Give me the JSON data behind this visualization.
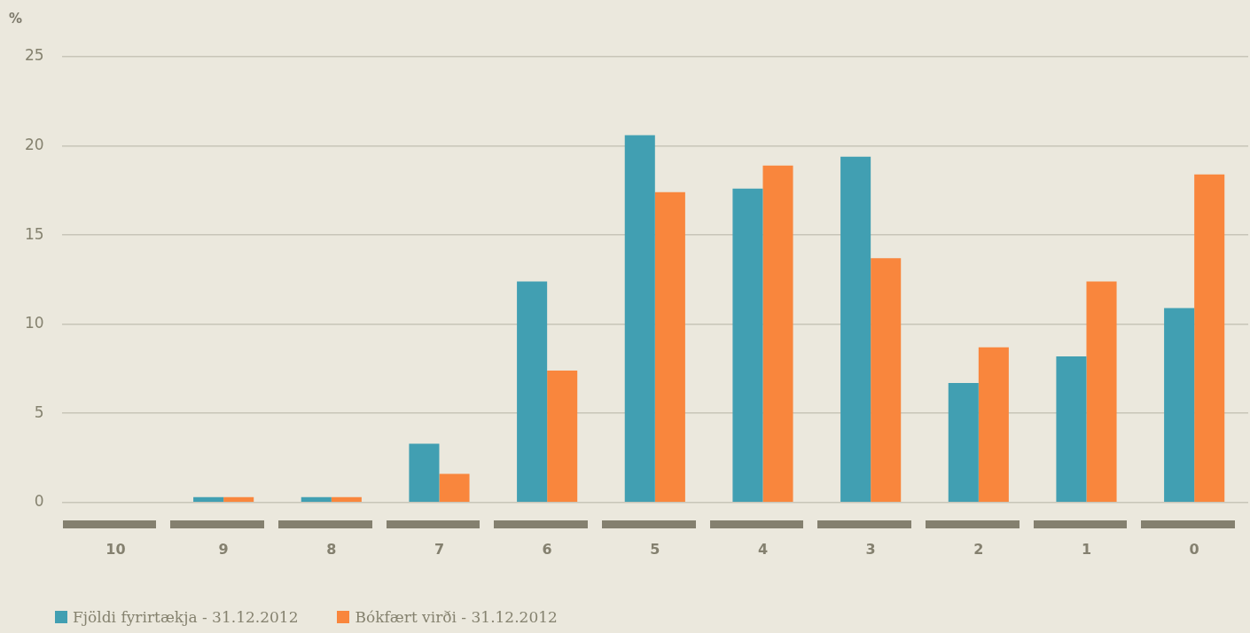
{
  "chart_data": {
    "type": "bar",
    "ylabel": "%",
    "categories": [
      "10",
      "9",
      "8",
      "7",
      "6",
      "5",
      "4",
      "3",
      "2",
      "1",
      "0"
    ],
    "series": [
      {
        "name": "Fjöldi fyrirtækja - 31.12.2012",
        "color": "#419fb2",
        "values": [
          0,
          0.3,
          0.3,
          3.3,
          12.4,
          20.6,
          17.6,
          19.4,
          6.7,
          8.2,
          10.9
        ]
      },
      {
        "name": "Bókfært virði - 31.12.2012",
        "color": "#f9863d",
        "values": [
          0,
          0.3,
          0.3,
          1.6,
          7.4,
          17.4,
          18.9,
          13.7,
          8.7,
          12.4,
          18.4
        ]
      }
    ],
    "ylim": [
      0,
      25
    ],
    "yticks": [
      0,
      5,
      10,
      15,
      20,
      25
    ],
    "grid": "y",
    "legend": "bottom left"
  }
}
